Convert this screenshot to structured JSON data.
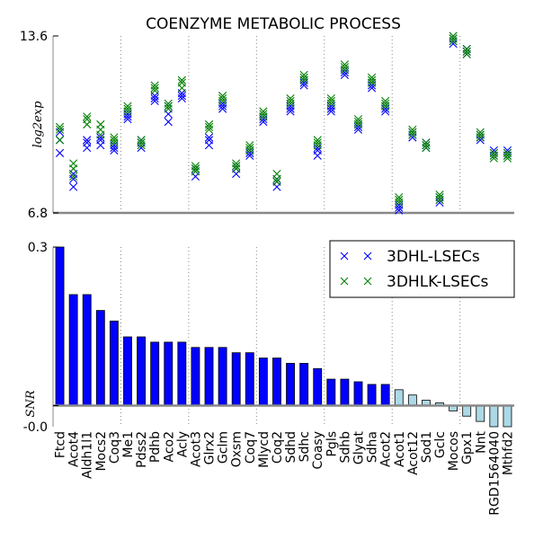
{
  "chart_data": {
    "title": "COENZYME METABOLIC PROCESS",
    "genes": [
      "Ftcd",
      "Acot4",
      "Aldh1l1",
      "Mocs2",
      "Coq3",
      "Me1",
      "Pdss2",
      "Pdhb",
      "Aco2",
      "Acly",
      "Acot3",
      "Glrx2",
      "Gclm",
      "Oxsm",
      "Coq7",
      "Mlycd",
      "Coq2",
      "Sdhd",
      "Sdhc",
      "Coasy",
      "Pgls",
      "Sdhb",
      "Glyat",
      "Sdha",
      "Acot2",
      "Acot1",
      "Acot12",
      "Sod1",
      "Gclc",
      "Mocos",
      "Gpx1",
      "Nnt",
      "RGD1564040",
      "Mthfd2"
    ],
    "panels": [
      {
        "type": "scatter",
        "ylabel": "log2exp",
        "ylim": [
          6.8,
          13.6
        ],
        "ytick_labels": [
          "13.6",
          "6.8"
        ],
        "group_separators_after_index": [
          4,
          9,
          14,
          19,
          24,
          29
        ],
        "series": [
          {
            "name": "3DHL-LSECs",
            "color": "#0000ff",
            "marker": "x",
            "values": [
              [
                9.6,
                9.1,
                9.9
              ],
              [
                7.8,
                8.3,
                8.1
              ],
              [
                9.3,
                9.6,
                9.5
              ],
              [
                9.4,
                9.7,
                9.6
              ],
              [
                9.2,
                9.4,
                9.3
              ],
              [
                10.5,
                10.4,
                10.6
              ],
              [
                9.6,
                9.3,
                9.5
              ],
              [
                11.1,
                11.3,
                11.2
              ],
              [
                10.3,
                10.9,
                10.6
              ],
              [
                11.2,
                11.4,
                11.3
              ],
              [
                8.2,
                8.5,
                8.4
              ],
              [
                9.4,
                9.7,
                9.6
              ],
              [
                11.0,
                10.8,
                10.9
              ],
              [
                8.3,
                8.6,
                8.5
              ],
              [
                9.0,
                9.2,
                9.1
              ],
              [
                10.3,
                10.5,
                10.4
              ],
              [
                7.8,
                8.1,
                8.0
              ],
              [
                10.7,
                10.8,
                10.9
              ],
              [
                11.7,
                11.8,
                11.9
              ],
              [
                9.2,
                9.0,
                9.3
              ],
              [
                10.8,
                10.9,
                10.7
              ],
              [
                12.1,
                12.3,
                12.2
              ],
              [
                10.1,
                10.2,
                10.0
              ],
              [
                11.6,
                11.8,
                11.7
              ],
              [
                10.7,
                10.8,
                10.9
              ],
              [
                6.9,
                7.0,
                7.1
              ],
              [
                9.7,
                9.8,
                9.9
              ],
              [
                9.5,
                9.3,
                9.4
              ],
              [
                7.3,
                7.4,
                7.2
              ],
              [
                13.3,
                13.4,
                13.5
              ],
              [
                12.9,
                13.0,
                13.1
              ],
              [
                9.6,
                9.7,
                9.8
              ],
              [
                9.0,
                9.2,
                9.1
              ],
              [
                9.0,
                9.2,
                9.1
              ]
            ]
          },
          {
            "name": "3DHLK-LSECs",
            "color": "#008000",
            "marker": "x",
            "values": [
              [
                10.1,
                9.6,
                10.0
              ],
              [
                8.2,
                8.7,
                8.5
              ],
              [
                10.4,
                10.2,
                10.5
              ],
              [
                10.0,
                10.2,
                9.8
              ],
              [
                9.6,
                9.7,
                9.5
              ],
              [
                10.8,
                10.7,
                10.9
              ],
              [
                9.4,
                9.6,
                9.5
              ],
              [
                11.6,
                11.5,
                11.7
              ],
              [
                10.9,
                11.0,
                10.8
              ],
              [
                11.9,
                11.6,
                11.8
              ],
              [
                8.4,
                8.6,
                8.5
              ],
              [
                10.0,
                10.2,
                10.1
              ],
              [
                11.2,
                11.1,
                11.3
              ],
              [
                8.5,
                8.7,
                8.6
              ],
              [
                9.2,
                9.4,
                9.3
              ],
              [
                10.5,
                10.7,
                10.6
              ],
              [
                8.0,
                8.3,
                8.1
              ],
              [
                11.0,
                11.1,
                11.2
              ],
              [
                12.0,
                12.1,
                11.9
              ],
              [
                9.4,
                9.6,
                9.5
              ],
              [
                11.0,
                11.2,
                11.1
              ],
              [
                12.4,
                12.3,
                12.5
              ],
              [
                10.3,
                10.4,
                10.2
              ],
              [
                11.9,
                12.0,
                11.8
              ],
              [
                10.9,
                11.0,
                11.1
              ],
              [
                7.3,
                7.4,
                7.2
              ],
              [
                9.8,
                9.9,
                10.0
              ],
              [
                9.4,
                9.5,
                9.3
              ],
              [
                7.4,
                7.5,
                7.3
              ],
              [
                13.5,
                13.6,
                13.4
              ],
              [
                13.0,
                13.1,
                12.9
              ],
              [
                9.7,
                9.8,
                9.9
              ],
              [
                8.9,
                9.0,
                9.1
              ],
              [
                8.9,
                9.0,
                9.1
              ]
            ]
          }
        ]
      },
      {
        "type": "bar",
        "ylabel": "SNR",
        "ylim": [
          -0.04,
          0.3
        ],
        "ytick_labels": [
          "0.3",
          "-0.0"
        ],
        "legend_position": "top-right",
        "colors": {
          "positive": "#0000ff",
          "negative": "#add8e6"
        },
        "group_separators_after_index": [
          4,
          9,
          14,
          19,
          24,
          29
        ],
        "values": [
          0.3,
          0.21,
          0.21,
          0.18,
          0.16,
          0.13,
          0.13,
          0.12,
          0.12,
          0.12,
          0.11,
          0.11,
          0.11,
          0.1,
          0.1,
          0.09,
          0.09,
          0.08,
          0.08,
          0.07,
          0.05,
          0.05,
          0.045,
          0.04,
          0.04,
          0.03,
          0.02,
          0.01,
          0.005,
          -0.01,
          -0.02,
          -0.03,
          -0.04,
          -0.04
        ]
      }
    ]
  }
}
